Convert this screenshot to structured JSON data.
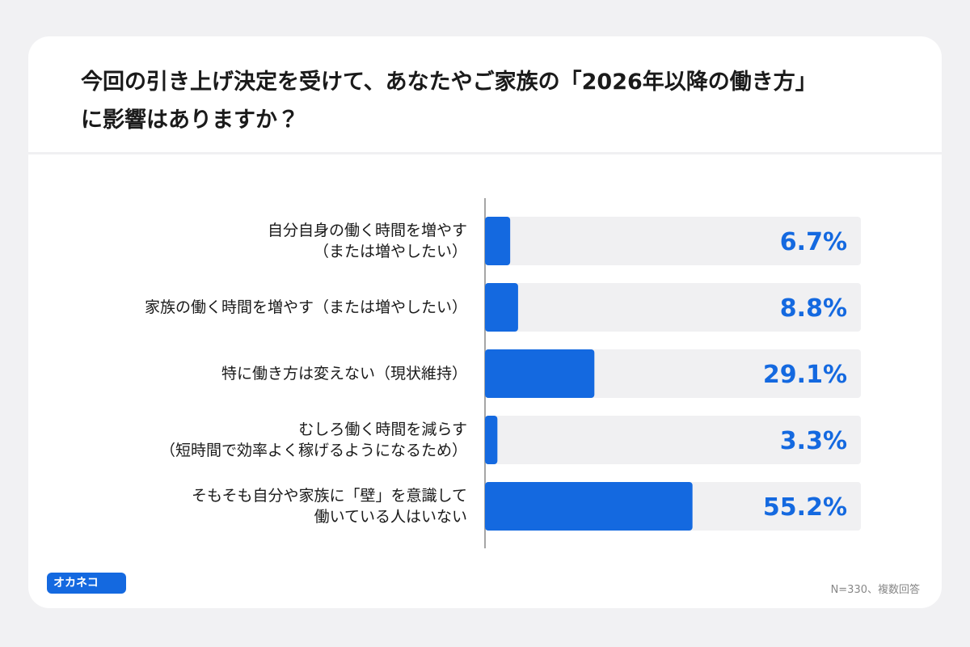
{
  "chart_data": {
    "type": "bar",
    "orientation": "horizontal",
    "title": "今回の引き上げ決定を受けて、あなたやご家族の「2026年以降の働き方」\nに影響はありますか？",
    "categories": [
      "自分自身の働く時間を増やす\n（または増やしたい）",
      "家族の働く時間を増やす（または増やしたい）",
      "特に働き方は変えない（現状維持）",
      "むしろ働く時間を減らす\n（短時間で効率よく稼げるようになるため）",
      "そもそも自分や家族に「壁」を意識して\n働いている人はいない"
    ],
    "values": [
      6.7,
      8.8,
      29.1,
      3.3,
      55.2
    ],
    "value_labels": [
      "6.7%",
      "8.8%",
      "29.1%",
      "3.3%",
      "55.2%"
    ],
    "color": "#1469e0",
    "xlim": [
      0,
      100
    ],
    "note": "N=330、複数回答",
    "brand": "オカネコ"
  }
}
